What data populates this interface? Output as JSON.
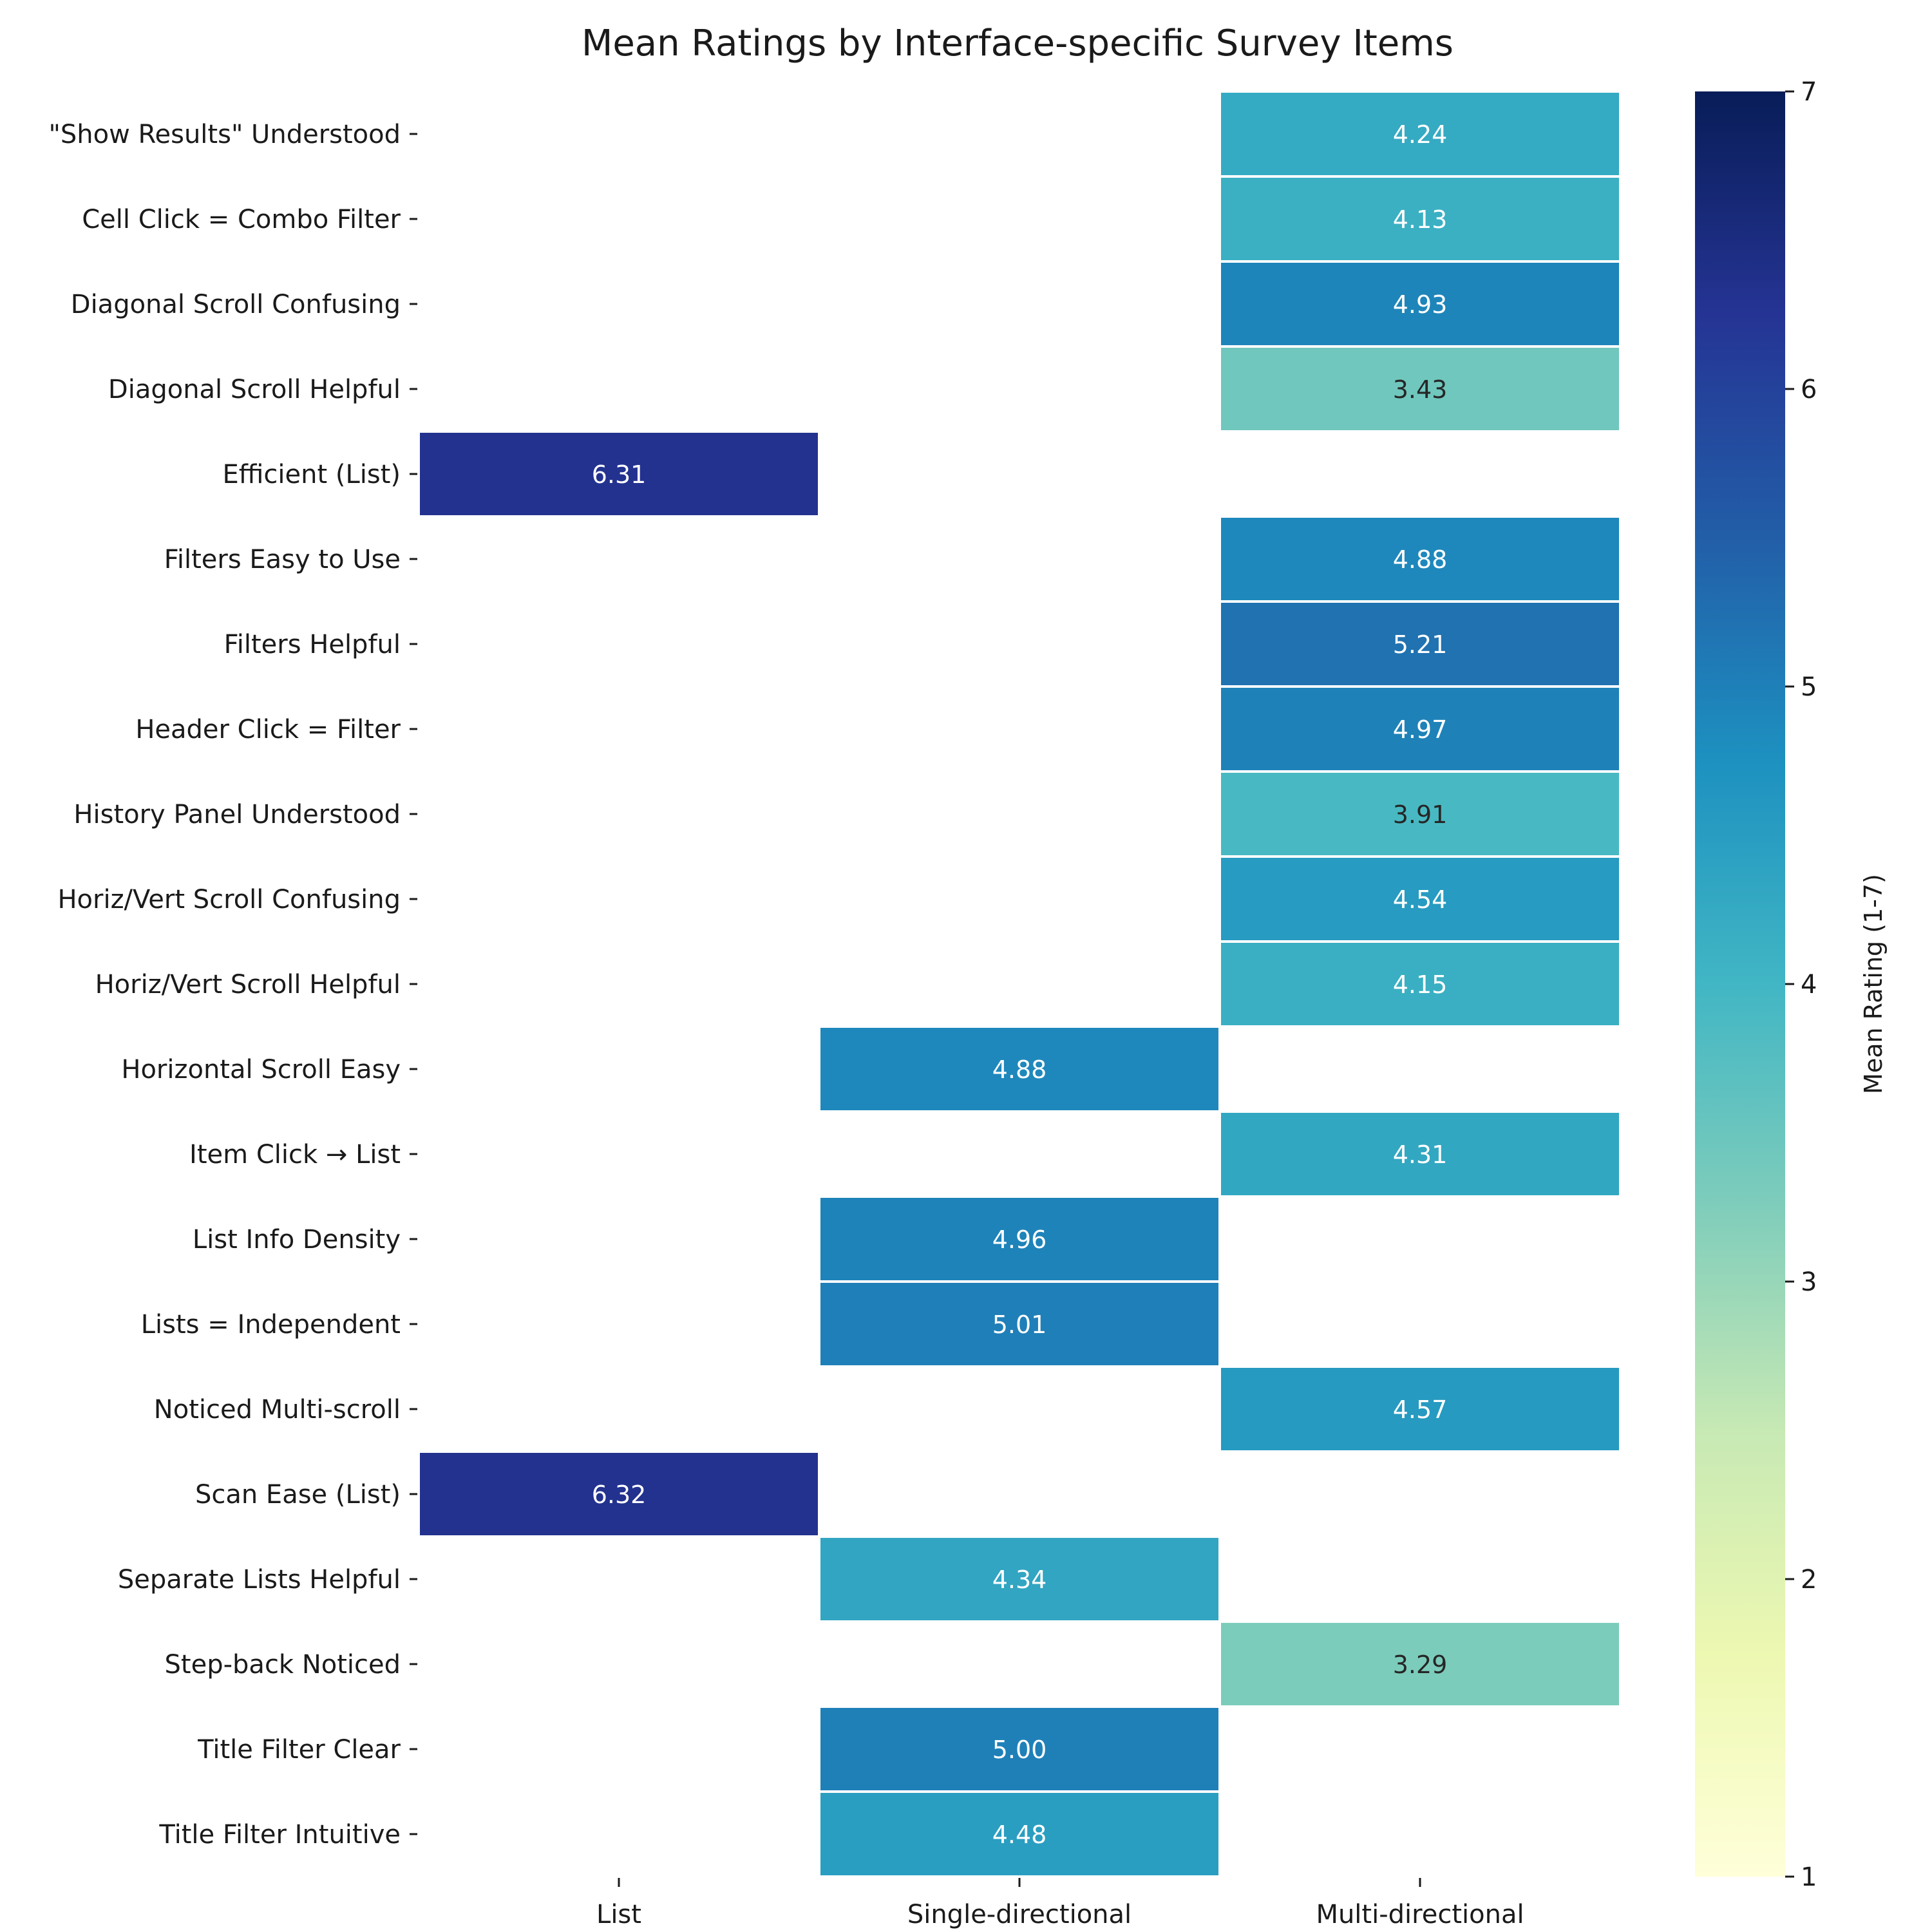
{
  "chart_data": {
    "type": "heatmap",
    "title": "Mean Ratings by Interface-specific Survey Items",
    "columns": [
      "List",
      "Single-directional",
      "Multi-directional"
    ],
    "rows": [
      "\"Show Results\" Understood",
      "Cell Click = Combo Filter",
      "Diagonal Scroll Confusing",
      "Diagonal Scroll Helpful",
      "Efficient (List)",
      "Filters Easy to Use",
      "Filters Helpful",
      "Header Click = Filter",
      "History Panel Understood",
      "Horiz/Vert Scroll Confusing",
      "Horiz/Vert Scroll Helpful",
      "Horizontal Scroll Easy",
      "Item Click → List",
      "List Info Density",
      "Lists = Independent",
      "Noticed Multi-scroll",
      "Scan Ease (List)",
      "Separate Lists Helpful",
      "Step-back Noticed",
      "Title Filter Clear",
      "Title Filter Intuitive"
    ],
    "values": [
      [
        null,
        null,
        4.24
      ],
      [
        null,
        null,
        4.13
      ],
      [
        null,
        null,
        4.93
      ],
      [
        null,
        null,
        3.43
      ],
      [
        6.31,
        null,
        null
      ],
      [
        null,
        null,
        4.88
      ],
      [
        null,
        null,
        5.21
      ],
      [
        null,
        null,
        4.97
      ],
      [
        null,
        null,
        3.91
      ],
      [
        null,
        null,
        4.54
      ],
      [
        null,
        null,
        4.15
      ],
      [
        null,
        4.88,
        null
      ],
      [
        null,
        null,
        4.31
      ],
      [
        null,
        4.96,
        null
      ],
      [
        null,
        5.01,
        null
      ],
      [
        null,
        null,
        4.57
      ],
      [
        6.32,
        null,
        null
      ],
      [
        null,
        4.34,
        null
      ],
      [
        null,
        null,
        3.29
      ],
      [
        null,
        5.0,
        null
      ],
      [
        null,
        4.48,
        null
      ]
    ],
    "value_format": "2 decimals",
    "colorbar": {
      "label": "Mean Rating (1-7)",
      "range": [
        1,
        7
      ],
      "ticks": [
        1,
        2,
        3,
        4,
        5,
        6,
        7
      ],
      "colormap": "YlGnBu"
    },
    "colormap_stops": [
      "#ffffd9",
      "#edf8b1",
      "#c7e9b4",
      "#7fcdbb",
      "#41b6c4",
      "#1d91c0",
      "#225ea8",
      "#253494",
      "#081d58"
    ]
  }
}
